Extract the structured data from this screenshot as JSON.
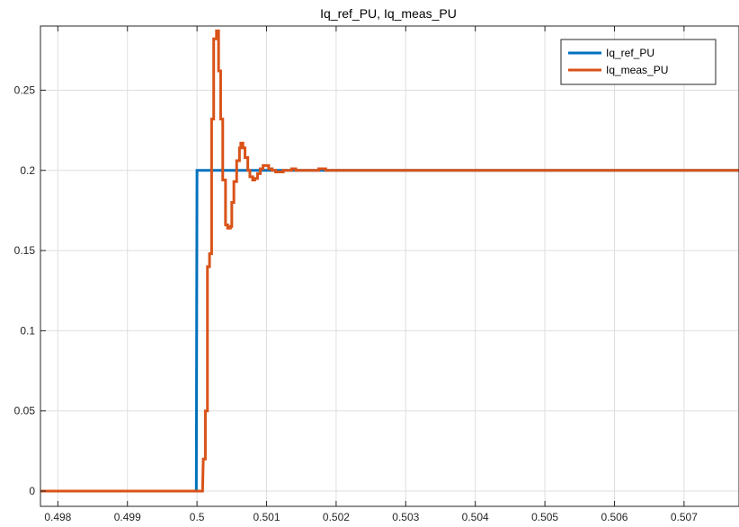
{
  "chart_data": {
    "type": "line",
    "title": "Iq_ref_PU, Iq_meas_PU",
    "xlabel": "",
    "ylabel": "",
    "xlim": [
      0.49775,
      0.50779
    ],
    "ylim": [
      -0.0095,
      0.29
    ],
    "grid": true,
    "legend_position": "top-right",
    "x_ticks": [
      {
        "value": 0.498,
        "label": "0.498"
      },
      {
        "value": 0.499,
        "label": "0.499"
      },
      {
        "value": 0.5,
        "label": "0.5"
      },
      {
        "value": 0.501,
        "label": "0.501"
      },
      {
        "value": 0.502,
        "label": "0.502"
      },
      {
        "value": 0.503,
        "label": "0.503"
      },
      {
        "value": 0.504,
        "label": "0.504"
      },
      {
        "value": 0.505,
        "label": "0.505"
      },
      {
        "value": 0.506,
        "label": "0.506"
      },
      {
        "value": 0.507,
        "label": "0.507"
      }
    ],
    "y_ticks": [
      {
        "value": 0,
        "label": "0"
      },
      {
        "value": 0.05,
        "label": "0.05"
      },
      {
        "value": 0.1,
        "label": "0.1"
      },
      {
        "value": 0.15,
        "label": "0.15"
      },
      {
        "value": 0.2,
        "label": "0.2"
      },
      {
        "value": 0.25,
        "label": "0.25"
      }
    ],
    "series": [
      {
        "name": "Iq_ref_PU",
        "color": "#0072BD",
        "x": [
          0.49775,
          0.49999,
          0.5,
          0.50779
        ],
        "y": [
          0,
          0,
          0.2,
          0.2
        ]
      },
      {
        "name": "Iq_meas_PU",
        "color": "#D95319",
        "x": [
          0.49775,
          0.50008,
          0.50009,
          0.50012,
          0.50012,
          0.50015,
          0.50015,
          0.50018,
          0.50018,
          0.50021,
          0.50021,
          0.50024,
          0.50024,
          0.50028,
          0.50028,
          0.50031,
          0.50031,
          0.50034,
          0.50034,
          0.50037,
          0.50037,
          0.50041,
          0.50041,
          0.50044,
          0.50044,
          0.50048,
          0.50048,
          0.5005,
          0.5005,
          0.50053,
          0.50053,
          0.50057,
          0.50057,
          0.50061,
          0.50061,
          0.50063,
          0.50063,
          0.50066,
          0.50066,
          0.50069,
          0.50069,
          0.50073,
          0.50073,
          0.50076,
          0.50076,
          0.5008,
          0.5008,
          0.50083,
          0.50083,
          0.50087,
          0.50087,
          0.50091,
          0.50091,
          0.50095,
          0.50095,
          0.50099,
          0.50099,
          0.50103,
          0.50103,
          0.50108,
          0.50108,
          0.50113,
          0.50113,
          0.50118,
          0.50118,
          0.50124,
          0.50124,
          0.5013,
          0.5013,
          0.50136,
          0.50136,
          0.50142,
          0.50142,
          0.5015,
          0.5015,
          0.5016,
          0.5016,
          0.50175,
          0.50175,
          0.50185,
          0.50185,
          0.502,
          0.502,
          0.50779
        ],
        "y": [
          0,
          0,
          0.02,
          0.02,
          0.05,
          0.05,
          0.14,
          0.14,
          0.148,
          0.148,
          0.232,
          0.232,
          0.282,
          0.282,
          0.287,
          0.287,
          0.262,
          0.262,
          0.232,
          0.232,
          0.194,
          0.194,
          0.166,
          0.166,
          0.164,
          0.164,
          0.165,
          0.165,
          0.18,
          0.18,
          0.193,
          0.193,
          0.206,
          0.206,
          0.214,
          0.214,
          0.217,
          0.217,
          0.214,
          0.214,
          0.208,
          0.208,
          0.2,
          0.2,
          0.196,
          0.196,
          0.194,
          0.194,
          0.195,
          0.195,
          0.198,
          0.198,
          0.201,
          0.201,
          0.203,
          0.203,
          0.203,
          0.203,
          0.201,
          0.201,
          0.2,
          0.2,
          0.199,
          0.199,
          0.199,
          0.199,
          0.2,
          0.2,
          0.2,
          0.2,
          0.201,
          0.201,
          0.2,
          0.2,
          0.2,
          0.2,
          0.2,
          0.2,
          0.201,
          0.201,
          0.2,
          0.2,
          0.2,
          0.2
        ]
      }
    ]
  }
}
